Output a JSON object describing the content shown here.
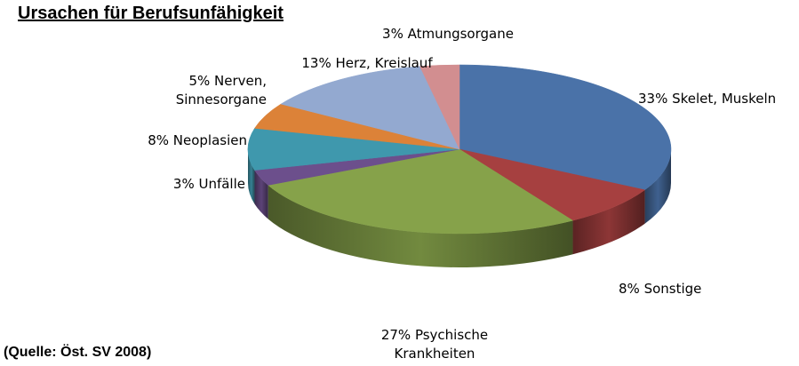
{
  "title": "Ursachen für Berufsunfähigkeit",
  "source": "(Quelle: Öst. SV 2008)",
  "chart_data": {
    "type": "pie",
    "title": "Ursachen für Berufsunfähigkeit",
    "style": "3d",
    "slices": [
      {
        "value": 33,
        "label": [
          "33% Skelet, Muskeln"
        ],
        "color": "#4a72a8"
      },
      {
        "value": 8,
        "label": [
          "8% Sonstige"
        ],
        "color": "#a64040"
      },
      {
        "value": 27,
        "label": [
          "27% Psychische",
          "Krankheiten"
        ],
        "color": "#86a24a"
      },
      {
        "value": 3,
        "label": [
          "3% Unfälle"
        ],
        "color": "#6c4f8c"
      },
      {
        "value": 8,
        "label": [
          "8% Neoplasien"
        ],
        "color": "#3f98ad"
      },
      {
        "value": 5,
        "label": [
          "5%  Nerven,",
          "Sinnesorgane"
        ],
        "color": "#dc8238"
      },
      {
        "value": 13,
        "label": [
          "13% Herz, Kreislauf"
        ],
        "color": "#93a9d0"
      },
      {
        "value": 3,
        "label": [
          "3% Atmungsorgane"
        ],
        "color": "#d28e90"
      }
    ]
  }
}
